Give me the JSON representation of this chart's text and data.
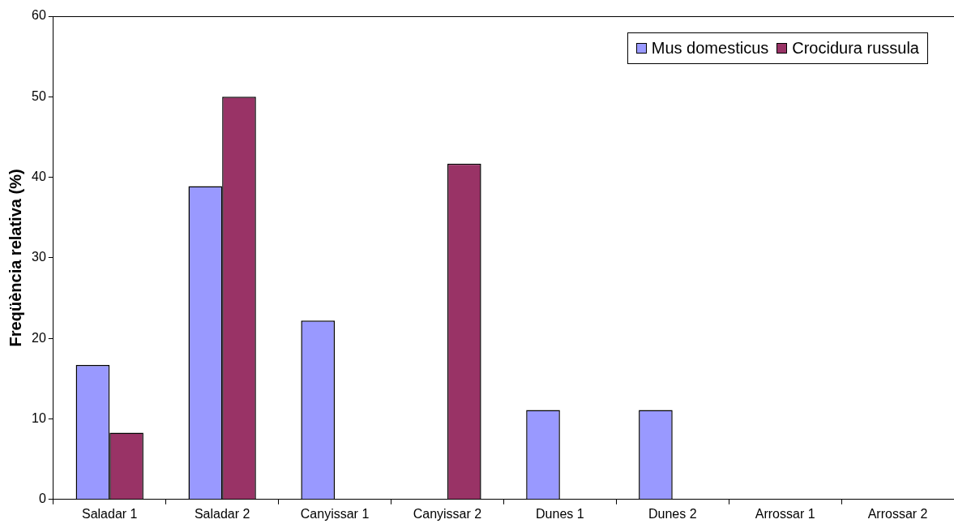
{
  "chart_data": {
    "type": "bar",
    "ylabel": "Freqüència relativa (%)",
    "categories": [
      "Saladar 1",
      "Saladar 2",
      "Canyissar 1",
      "Canyissar 2",
      "Dunes 1",
      "Dunes 2",
      "Arrossar 1",
      "Arrossar 2"
    ],
    "series": [
      {
        "name": "Mus domesticus",
        "color": "#9999ff",
        "values": [
          16.7,
          38.9,
          22.2,
          0,
          11.1,
          11.1,
          0,
          0
        ]
      },
      {
        "name": "Crocidura russula",
        "color": "#993366",
        "values": [
          8.3,
          50,
          0,
          41.7,
          0,
          0,
          0,
          0
        ]
      }
    ],
    "ylim": [
      0,
      60
    ],
    "yticks": [
      0,
      10,
      20,
      30,
      40,
      50,
      60
    ],
    "grid": false,
    "legend": "top right"
  }
}
